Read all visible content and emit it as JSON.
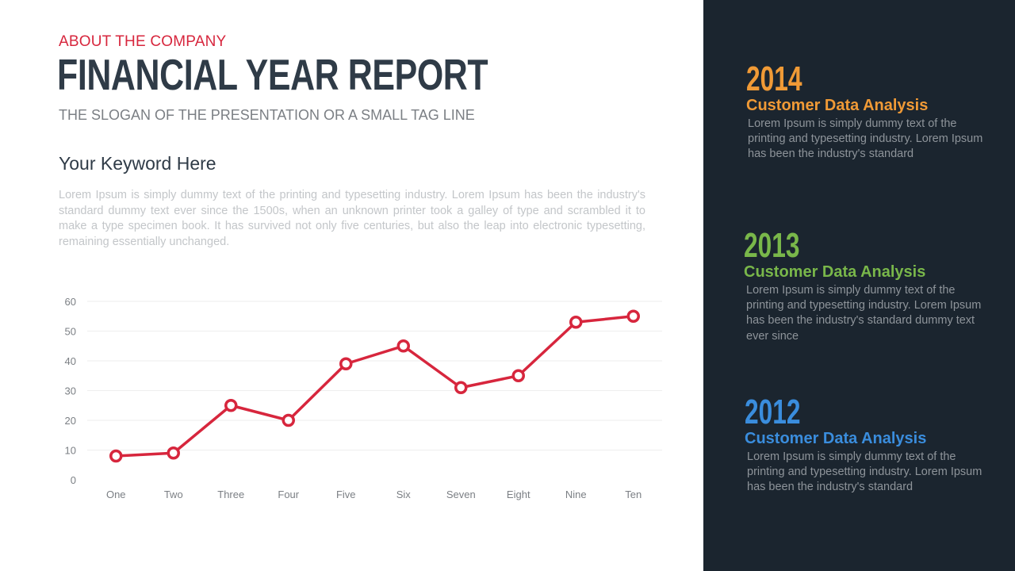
{
  "header": {
    "kicker": "ABOUT THE COMPANY",
    "title": "FINANCIAL YEAR REPORT",
    "tagline": "THE SLOGAN OF THE PRESENTATION OR A SMALL TAG LINE"
  },
  "main": {
    "keyword": "Your Keyword Here",
    "body": "Lorem Ipsum is simply dummy text of the printing and typesetting industry. Lorem Ipsum has been the industry's standard dummy text ever since the 1500s, when an unknown printer took a galley of type and scrambled it to make a type specimen book. It has survived not only five centuries, but also the leap into electronic typesetting, remaining essentially unchanged."
  },
  "chart_data": {
    "type": "line",
    "categories": [
      "One",
      "Two",
      "Three",
      "Four",
      "Five",
      "Six",
      "Seven",
      "Eight",
      "Nine",
      "Ten"
    ],
    "series": [
      {
        "values": [
          8,
          9,
          25,
          20,
          39,
          45,
          31,
          35,
          53,
          55
        ]
      }
    ],
    "ylim": [
      0,
      60
    ],
    "yticks": [
      0,
      10,
      20,
      30,
      40,
      50,
      60
    ],
    "grid": true,
    "colors": {
      "line": "#d7263d",
      "grid": "#eeeeee",
      "tick_text": "#7b7f84"
    }
  },
  "timeline": [
    {
      "year": "2014",
      "heading": "Customer Data Analysis",
      "text": "Lorem Ipsum is simply dummy text of the printing and typesetting industry. Lorem Ipsum has been the industry's standard",
      "color": "#f09a36"
    },
    {
      "year": "2013",
      "heading": "Customer Data Analysis",
      "text": "Lorem Ipsum is simply dummy text of the printing and typesetting industry. Lorem Ipsum has been the industry's standard dummy text ever since",
      "color": "#79b74a"
    },
    {
      "year": "2012",
      "heading": "Customer Data Analysis",
      "text": "Lorem Ipsum is simply dummy text of the printing and typesetting industry. Lorem Ipsum has been the industry's standard",
      "color": "#3a8ddd"
    }
  ]
}
